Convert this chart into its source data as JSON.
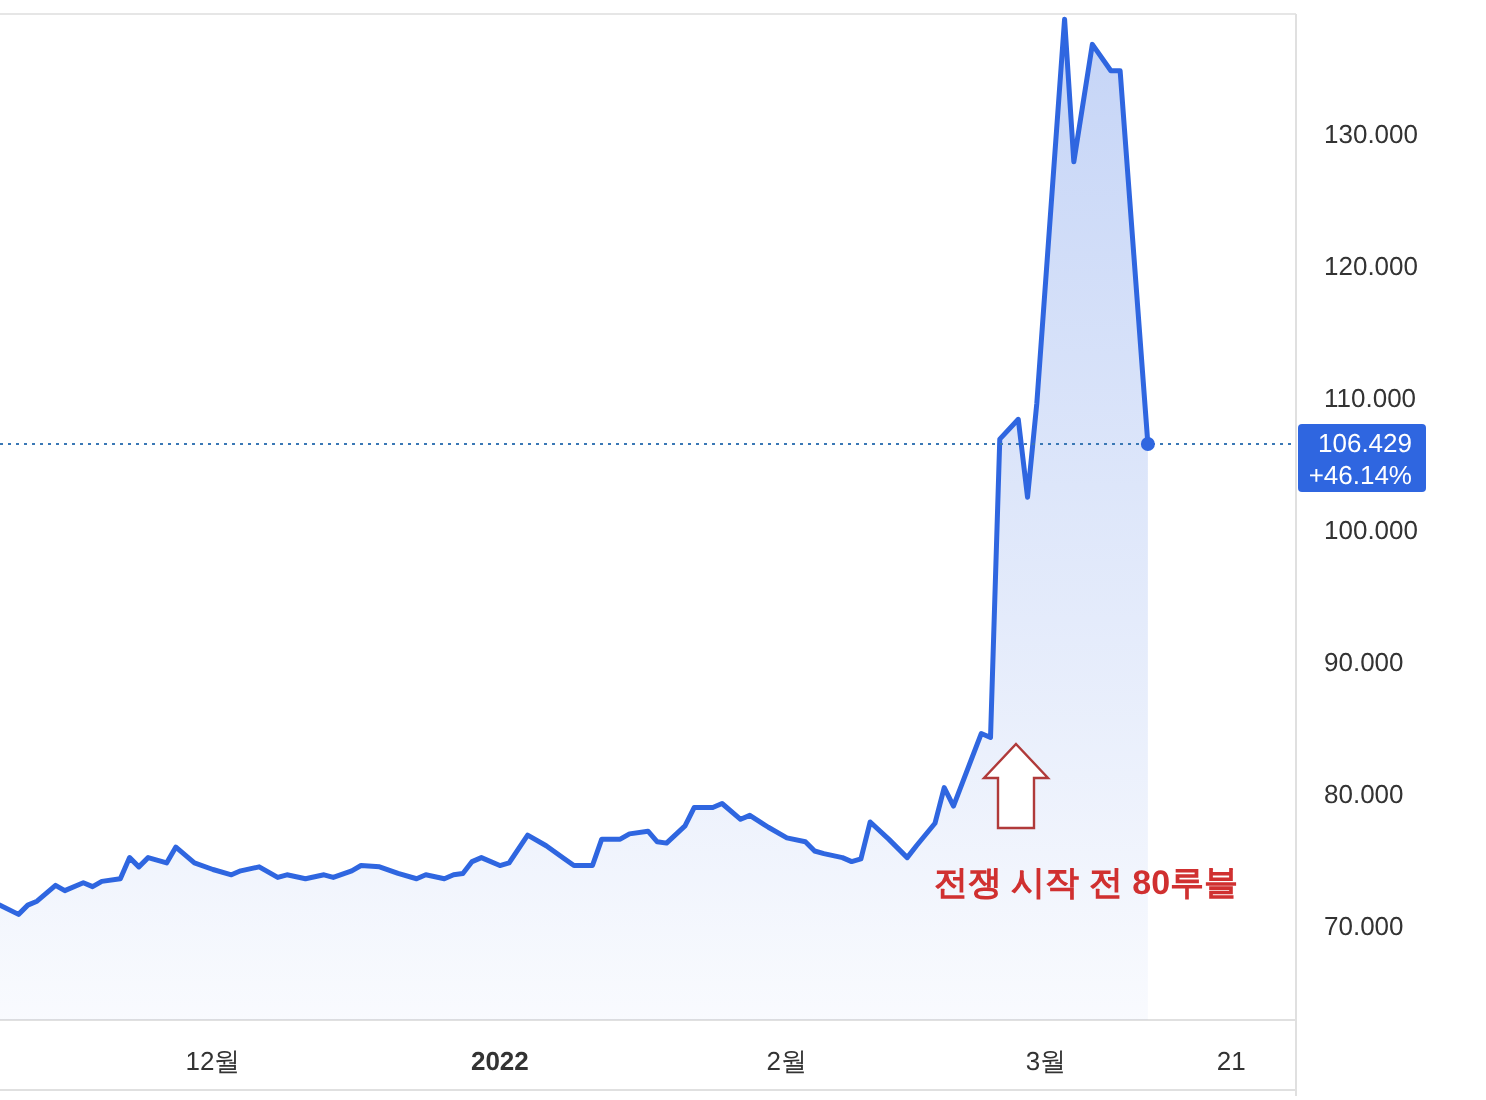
{
  "chart_data": {
    "type": "area",
    "color": "#2f66e0",
    "x": [
      "2021-11-08",
      "2021-11-10",
      "2021-11-11",
      "2021-11-12",
      "2021-11-14",
      "2021-11-15",
      "2021-11-17",
      "2021-11-18",
      "2021-11-19",
      "2021-11-21",
      "2021-11-22",
      "2021-11-23",
      "2021-11-24",
      "2021-11-26",
      "2021-11-27",
      "2021-11-29",
      "2021-12-01",
      "2021-12-03",
      "2021-12-04",
      "2021-12-06",
      "2021-12-08",
      "2021-12-09",
      "2021-12-11",
      "2021-12-13",
      "2021-12-14",
      "2021-12-16",
      "2021-12-17",
      "2021-12-19",
      "2021-12-21",
      "2021-12-23",
      "2021-12-24",
      "2021-12-26",
      "2021-12-27",
      "2021-12-28",
      "2021-12-29",
      "2021-12-30",
      "2022-01-01",
      "2022-01-02",
      "2022-01-04",
      "2022-01-06",
      "2022-01-08",
      "2022-01-09",
      "2022-01-11",
      "2022-01-12",
      "2022-01-14",
      "2022-01-15",
      "2022-01-17",
      "2022-01-18",
      "2022-01-19",
      "2022-01-21",
      "2022-01-22",
      "2022-01-24",
      "2022-01-25",
      "2022-01-27",
      "2022-01-28",
      "2022-01-30",
      "2022-02-01",
      "2022-02-03",
      "2022-02-04",
      "2022-02-05",
      "2022-02-07",
      "2022-02-08",
      "2022-02-09",
      "2022-02-10",
      "2022-02-12",
      "2022-02-14",
      "2022-02-15",
      "2022-02-17",
      "2022-02-18",
      "2022-02-19",
      "2022-02-22",
      "2022-02-23",
      "2022-02-24",
      "2022-02-26",
      "2022-02-27",
      "2022-02-28",
      "2022-03-03",
      "2022-03-04",
      "2022-03-06",
      "2022-03-08",
      "2022-03-09",
      "2022-03-12"
    ],
    "values": [
      71.5,
      70.8,
      71.5,
      71.8,
      73.0,
      72.6,
      73.2,
      72.9,
      73.3,
      73.5,
      75.1,
      74.4,
      75.1,
      74.7,
      75.9,
      74.7,
      74.2,
      73.8,
      74.1,
      74.4,
      73.6,
      73.8,
      73.5,
      73.8,
      73.6,
      74.1,
      74.5,
      74.4,
      73.9,
      73.5,
      73.8,
      73.5,
      73.8,
      73.9,
      74.8,
      75.1,
      74.5,
      74.7,
      76.8,
      76.0,
      75.0,
      74.5,
      74.5,
      76.5,
      76.5,
      76.9,
      77.1,
      76.3,
      76.2,
      77.5,
      78.9,
      78.9,
      79.2,
      78.0,
      78.3,
      77.4,
      76.6,
      76.3,
      75.6,
      75.4,
      75.1,
      74.8,
      75.0,
      77.8,
      76.5,
      75.1,
      76.0,
      77.7,
      80.4,
      79.0,
      84.5,
      84.2,
      106.8,
      108.3,
      102.4,
      109.5,
      138.6,
      127.8,
      136.7,
      134.7,
      134.7,
      106.429
    ],
    "xlim": [
      "2021-11-08",
      "2022-03-28"
    ],
    "xticks": [
      {
        "value": "2021-12-01",
        "label": "12월"
      },
      {
        "value": "2022-01-01",
        "label": "2022"
      },
      {
        "value": "2022-02-01",
        "label": "2월"
      },
      {
        "value": "2022-03-01",
        "label": "3월"
      },
      {
        "value": "2022-03-21",
        "label": "21"
      }
    ],
    "ylim": [
      62.8,
      139
    ],
    "yticks": [
      {
        "value": 70,
        "label": "70.000"
      },
      {
        "value": 80,
        "label": "80.000"
      },
      {
        "value": 90,
        "label": "90.000"
      },
      {
        "value": 100,
        "label": "100.000"
      },
      {
        "value": 110,
        "label": "110.000"
      },
      {
        "value": 120,
        "label": "120.000"
      },
      {
        "value": 130,
        "label": "130.000"
      }
    ],
    "marker": "none",
    "line_style": "solid",
    "ref_lines": [
      {
        "axis": "y",
        "value": 106.429,
        "label": "106.429",
        "color": "#3a78b5",
        "line_style": "dotted"
      }
    ],
    "annotations": [
      "+46.14%",
      "전쟁 시작 전 80루블"
    ]
  }
}
